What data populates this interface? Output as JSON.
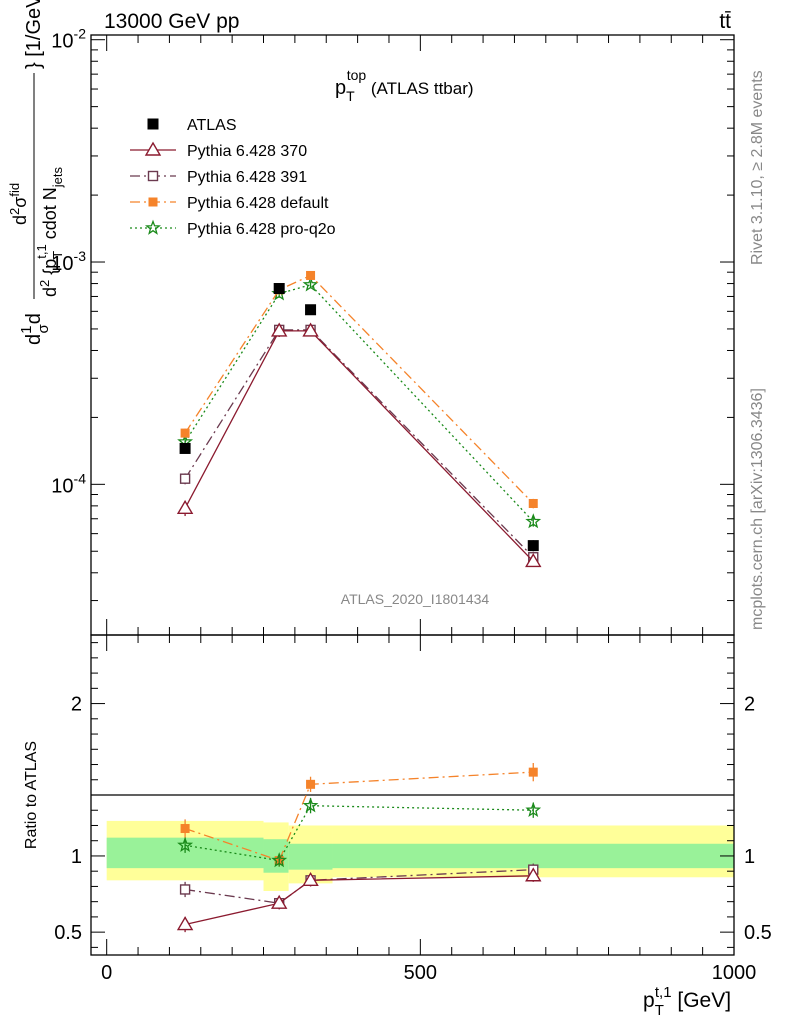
{
  "header": {
    "left": "13000 GeV pp",
    "right": "tt̄"
  },
  "side_labels": {
    "rivet": "Rivet 3.1.10, ≥ 2.8M events",
    "mcplots": "mcplots.cern.ch [arXiv:1306.3436]"
  },
  "watermark": "ATLAS_2020_I1801434",
  "chart_data": [
    {
      "type": "scatter",
      "panel": "main",
      "title": "p_T^top (ATLAS ttbar)",
      "ylabel": "d²σ^fid/d²{p_T^t,1} cdot N_jets} [1/GeV]",
      "yscale": "log",
      "ylim": [
        2.1e-05,
        0.0105
      ],
      "ytick_labels": [
        "10^-4",
        "10^-3",
        "10^-2"
      ],
      "legend_position": "top-left",
      "x": [
        125,
        275,
        325,
        680
      ],
      "series": [
        {
          "name": "ATLAS",
          "color": "#000000",
          "marker": "square-filled",
          "line": "none",
          "values": [
            0.000145,
            0.00076,
            0.00061,
            5.3e-05
          ],
          "errors": [
            7e-06,
            3e-05,
            3e-05,
            3e-06
          ]
        },
        {
          "name": "Pythia 6.428 370",
          "color": "#8b1a2f",
          "marker": "triangle-open",
          "line": "solid",
          "values": [
            7.8e-05,
            0.00049,
            0.00049,
            4.5e-05
          ],
          "errors": [
            6e-06,
            3e-05,
            2.5e-05,
            2.5e-06
          ]
        },
        {
          "name": "Pythia 6.428 391",
          "color": "#6b3a4f",
          "marker": "square-open",
          "line": "dashdot",
          "values": [
            0.000106,
            0.000495,
            0.000495,
            4.7e-05
          ],
          "errors": [
            6e-06,
            3e-05,
            2.5e-05,
            2.5e-06
          ]
        },
        {
          "name": "Pythia 6.428 default",
          "color": "#f5832a",
          "marker": "square-filled-small",
          "line": "dashdot",
          "values": [
            0.00017,
            0.00075,
            0.00087,
            8.2e-05
          ],
          "errors": [
            8e-06,
            3e-05,
            3e-05,
            4e-06
          ]
        },
        {
          "name": "Pythia 6.428 pro-q2o",
          "color": "#1a8a1a",
          "marker": "star",
          "line": "dotted",
          "values": [
            0.000155,
            0.00072,
            0.00079,
            6.8e-05
          ],
          "errors": [
            7e-06,
            3e-05,
            3e-05,
            3.5e-06
          ]
        }
      ]
    },
    {
      "type": "scatter",
      "panel": "ratio",
      "ylabel": "Ratio to ATLAS",
      "xlabel": "p_T^t,1 [GeV]",
      "xlim": [
        -25,
        1000
      ],
      "ylim": [
        0.35,
        2.45
      ],
      "x_tick_labels": [
        "0",
        "500",
        "1000"
      ],
      "y_tick_labels": [
        "0.5",
        "1",
        "2"
      ],
      "x": [
        125,
        275,
        325,
        680
      ],
      "bands": {
        "edges": [
          0,
          250,
          290,
          360,
          1000
        ],
        "yellow": [
          [
            0.84,
            1.23
          ],
          [
            0.77,
            1.22
          ],
          [
            0.82,
            1.2
          ],
          [
            0.86,
            1.2
          ]
        ],
        "green": [
          [
            0.92,
            1.12
          ],
          [
            0.89,
            1.11
          ],
          [
            0.91,
            1.08
          ],
          [
            0.92,
            1.08
          ]
        ]
      },
      "series": [
        {
          "name": "Pythia 6.428 370",
          "values": [
            0.55,
            0.69,
            0.84,
            0.87
          ],
          "errors": [
            0.05,
            0.04,
            0.04,
            0.04
          ]
        },
        {
          "name": "Pythia 6.428 391",
          "values": [
            0.78,
            0.69,
            0.84,
            0.91
          ],
          "errors": [
            0.05,
            0.04,
            0.04,
            0.04
          ]
        },
        {
          "name": "Pythia 6.428 default",
          "values": [
            1.18,
            0.97,
            1.47,
            1.55
          ],
          "errors": [
            0.06,
            0.04,
            0.05,
            0.06
          ]
        },
        {
          "name": "Pythia 6.428 pro-q2o",
          "values": [
            1.07,
            0.97,
            1.33,
            1.3
          ],
          "errors": [
            0.05,
            0.04,
            0.05,
            0.05
          ]
        }
      ]
    }
  ]
}
